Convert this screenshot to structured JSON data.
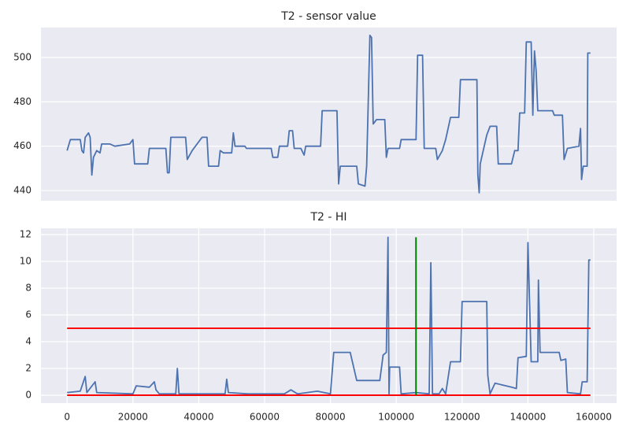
{
  "chart_data": [
    {
      "type": "line",
      "title": "T2 - sensor value",
      "x": [
        0,
        1000,
        4000,
        4500,
        5000,
        5500,
        6500,
        7000,
        7500,
        8000,
        9000,
        10000,
        10500,
        13000,
        14500,
        19000,
        20000,
        20500,
        24500,
        25000,
        30000,
        30500,
        31000,
        31500,
        36000,
        36500,
        38000,
        41000,
        42500,
        43000,
        46000,
        46500,
        47500,
        50000,
        50500,
        51000,
        54000,
        54500,
        62000,
        62500,
        64000,
        64500,
        67000,
        67500,
        68500,
        69000,
        71000,
        72000,
        72500,
        77000,
        77500,
        82000,
        82500,
        83000,
        88000,
        88500,
        90500,
        91000,
        92000,
        92500,
        93000,
        94000,
        96500,
        97000,
        97500,
        101000,
        101500,
        106000,
        106500,
        108000,
        108500,
        112000,
        112500,
        114000,
        115000,
        116500,
        119000,
        119500,
        124500,
        124800,
        125200,
        125500,
        127500,
        128500,
        130500,
        131000,
        135000,
        136000,
        137000,
        137500,
        139000,
        139500,
        141000,
        141500,
        142000,
        142500,
        143000,
        147500,
        148000,
        150500,
        151000,
        152000,
        155500,
        156000,
        156300,
        156800,
        158000,
        158200,
        159000
      ],
      "series": [
        {
          "color": "#4c72b0",
          "values": [
            458,
            463,
            463,
            458,
            457,
            464,
            466,
            464,
            447,
            455,
            458,
            457,
            461,
            461,
            460,
            461,
            463,
            452,
            452,
            459,
            459,
            448,
            448,
            464,
            464,
            454,
            458,
            464,
            464,
            451,
            451,
            458,
            457,
            457,
            466,
            460,
            460,
            459,
            459,
            455,
            455,
            460,
            460,
            467,
            467,
            459,
            459,
            456,
            460,
            460,
            476,
            476,
            443,
            451,
            451,
            443,
            442,
            451,
            510,
            509,
            470,
            472,
            472,
            455,
            459,
            459,
            463,
            463,
            501,
            501,
            459,
            459,
            454,
            458,
            463,
            473,
            473,
            490,
            490,
            447,
            439,
            452,
            465,
            469,
            469,
            452,
            452,
            458,
            458,
            475,
            475,
            507,
            507,
            474,
            503,
            494,
            476,
            476,
            474,
            474,
            454,
            459,
            460,
            468,
            445,
            451,
            451,
            502,
            502
          ]
        }
      ],
      "xlim": [
        -7950,
        166950
      ],
      "ylim": [
        435.4,
        513.5
      ],
      "yticks": [
        440,
        460,
        480,
        500
      ],
      "grid": true
    },
    {
      "type": "line",
      "title": "T2 - HI",
      "x": [
        0,
        4000,
        5500,
        6000,
        8500,
        9000,
        20000,
        21000,
        25000,
        26500,
        27000,
        28000,
        33000,
        33500,
        34000,
        48000,
        48500,
        49000,
        55000,
        66000,
        68000,
        70000,
        76000,
        80000,
        81000,
        86000,
        88000,
        95000,
        96000,
        97000,
        97500,
        97800,
        98000,
        101000,
        101500,
        106000,
        110000,
        110500,
        111000,
        113000,
        114000,
        115000,
        116500,
        119500,
        120000,
        127500,
        127800,
        128500,
        130000,
        135000,
        136500,
        137000,
        139500,
        140000,
        141000,
        143000,
        143200,
        143700,
        149500,
        150000,
        151500,
        152000,
        156000,
        156500,
        158000,
        158500,
        159000
      ],
      "series": [
        {
          "color": "#4c72b0",
          "values": [
            0.2,
            0.3,
            1.4,
            0.2,
            1,
            0.2,
            0.1,
            0.7,
            0.6,
            1,
            0.4,
            0.1,
            0.1,
            2,
            0.1,
            0.1,
            1.2,
            0.2,
            0.1,
            0.1,
            0.4,
            0.1,
            0.3,
            0.1,
            3.2,
            3.2,
            1.1,
            1.1,
            3,
            3.2,
            11.8,
            0.1,
            2.1,
            2.1,
            0.1,
            0.2,
            0.1,
            9.9,
            0.1,
            0.1,
            0.5,
            0.1,
            2.5,
            2.5,
            7,
            7,
            1.5,
            0.1,
            0.9,
            0.6,
            0.5,
            2.8,
            2.9,
            11.4,
            2.5,
            2.5,
            8.6,
            3.2,
            3.2,
            2.6,
            2.7,
            0.2,
            0.1,
            1,
            1,
            10.1,
            10.1
          ]
        }
      ],
      "hlines": [
        {
          "y": 5,
          "color": "#ff0000"
        },
        {
          "y": 0,
          "color": "#ff0000"
        }
      ],
      "vlines": [
        {
          "x": 106000,
          "ymin": 0,
          "ymax": 11.8,
          "color": "#008000"
        }
      ],
      "xlim": [
        -7950,
        166950
      ],
      "ylim": [
        -0.59,
        12.47
      ],
      "xticks": [
        0,
        20000,
        40000,
        60000,
        80000,
        100000,
        120000,
        140000,
        160000
      ],
      "yticks": [
        0,
        2,
        4,
        6,
        8,
        10,
        12
      ],
      "grid": true
    }
  ]
}
